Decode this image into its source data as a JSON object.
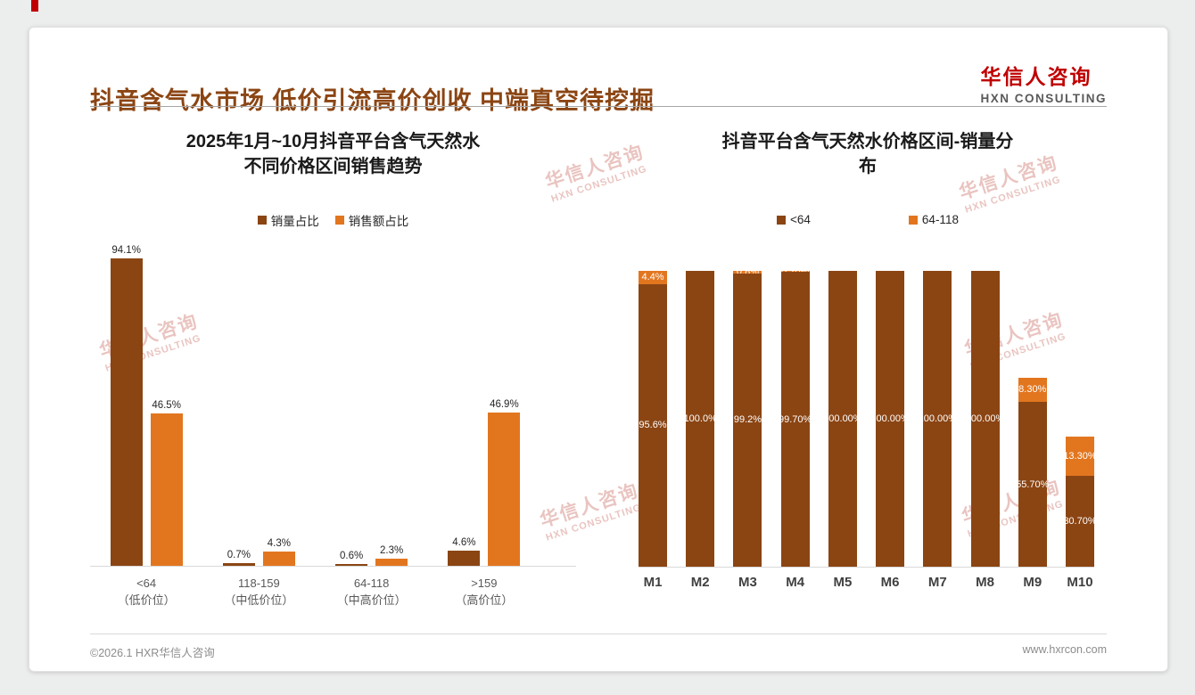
{
  "slide": {
    "title": "抖音含气水市场 低价引流高价创收 中端真空待挖掘",
    "logo": {
      "cn": "华信人咨询",
      "en": "HXN CONSULTING"
    },
    "watermark": {
      "cn": "华信人咨询",
      "en": "HXN CONSULTING"
    },
    "footer": {
      "copyright": "©2026.1 HXR华信人咨询",
      "website": "www.hxrcon.com"
    }
  },
  "colors": {
    "title_brown": "#8B4513",
    "brand_red": "#C00000",
    "series_brown": "#8B4513",
    "series_orange": "#E2761F",
    "axis_gray": "#D9D9D9",
    "watermark_pink": "#CF7D74"
  },
  "chart_data": [
    {
      "id": "price-band-trend",
      "type": "bar",
      "title_lines": [
        "2025年1月~10月抖音平台含气天然水",
        "不同价格区间销售趋势"
      ],
      "categories": [
        {
          "name": "<64",
          "sub": "（低价位）"
        },
        {
          "name": "118-159",
          "sub": "（中低价位）"
        },
        {
          "name": "64-118",
          "sub": "（中高价位）"
        },
        {
          "name": ">159",
          "sub": "（高价位）"
        }
      ],
      "series": [
        {
          "name": "销量占比",
          "color": "#8B4513",
          "values": [
            94.1,
            0.7,
            0.6,
            4.6
          ],
          "labels": [
            "94.1%",
            "0.7%",
            "0.6%",
            "4.6%"
          ]
        },
        {
          "name": "销售额占比",
          "color": "#E2761F",
          "values": [
            46.5,
            4.3,
            2.3,
            46.9
          ],
          "labels": [
            "46.5%",
            "4.3%",
            "2.3%",
            "46.9%"
          ]
        }
      ],
      "ylim": [
        0,
        100
      ],
      "grid": false,
      "legend_position": "top"
    },
    {
      "id": "monthly-volume-mix",
      "type": "stacked-bar",
      "title_lines": [
        "抖音平台含气天然水价格区间-销量分",
        "布"
      ],
      "categories": [
        "M1",
        "M2",
        "M3",
        "M4",
        "M5",
        "M6",
        "M7",
        "M8",
        "M9",
        "M10"
      ],
      "series": [
        {
          "name": "<64",
          "color": "#8B4513",
          "values": [
            95.6,
            100.0,
            99.2,
            99.7,
            100.0,
            100.0,
            100.0,
            100.0,
            55.7,
            30.7
          ],
          "labels": [
            "95.6%",
            "100.0%",
            "99.2%",
            "99.70%",
            "100.00%",
            "100.00%",
            "100.00%",
            "100.00%",
            "55.70%",
            "30.70%"
          ]
        },
        {
          "name": "64-118",
          "color": "#E2761F",
          "values": [
            4.4,
            0,
            0.8,
            0.2,
            0,
            0,
            0,
            0,
            8.3,
            13.3
          ],
          "labels": [
            "4.4%",
            "",
            "0.8%",
            "0.20%",
            "0.00%",
            "",
            "",
            "",
            "8.30%",
            "13.30%"
          ]
        }
      ],
      "ylim": [
        0,
        100
      ],
      "grid": false,
      "legend_position": "top"
    }
  ]
}
